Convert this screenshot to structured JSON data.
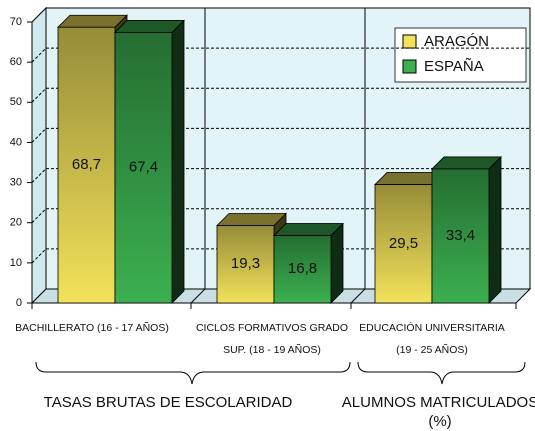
{
  "chart_data": {
    "type": "bar3d",
    "categories": [
      [
        "BACHILLERATO (16 - 17 AÑOS)"
      ],
      [
        "CICLOS FORMATIVOS GRADO",
        "SUP. (18 - 19 AÑOS)"
      ],
      [
        "EDUCACIÓN UNIVERSITARIA",
        "(19 - 25 AÑOS)"
      ]
    ],
    "series": [
      {
        "name": "ARAGÓN",
        "color": "#f2e25a",
        "values": [
          68.7,
          19.3,
          29.5
        ],
        "value_labels": [
          "68,7",
          "19,3",
          "29,5"
        ]
      },
      {
        "name": "ESPAÑA",
        "color": "#3cb050",
        "values": [
          67.4,
          16.8,
          33.4
        ],
        "value_labels": [
          "67,4",
          "16,8",
          "33,4"
        ]
      }
    ],
    "group_labels": [
      [
        "TASAS BRUTAS DE ESCOLARIDAD"
      ],
      [
        "ALUMNOS MATRICULADOS",
        "(%)"
      ]
    ],
    "ylim": [
      0,
      70
    ],
    "yticks": [
      0,
      10,
      20,
      30,
      40,
      50,
      60,
      70
    ],
    "grid": true,
    "legend": "top-right"
  }
}
